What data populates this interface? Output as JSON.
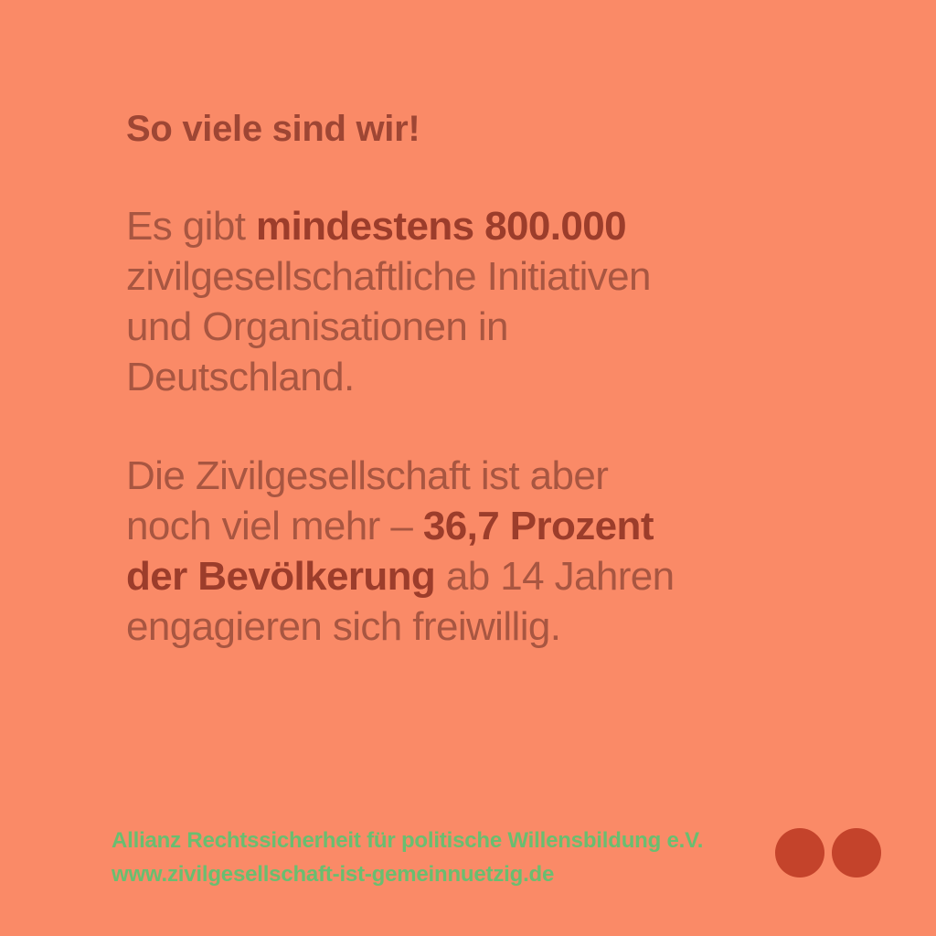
{
  "card": {
    "headline": "So viele sind wir!",
    "paragraphs": [
      {
        "lines": [
          {
            "segments": [
              {
                "text": "Es gibt ",
                "bold": false
              },
              {
                "text": "mindestens 800.000",
                "bold": true
              }
            ]
          },
          {
            "segments": [
              {
                "text": "zivilgesellschaftliche Initiativen",
                "bold": false
              }
            ]
          },
          {
            "segments": [
              {
                "text": "und Organisationen in",
                "bold": false
              }
            ]
          },
          {
            "segments": [
              {
                "text": "Deutschland.",
                "bold": false
              }
            ]
          }
        ]
      },
      {
        "lines": [
          {
            "segments": [
              {
                "text": "Die Zivilgesellschaft ist aber",
                "bold": false
              }
            ]
          },
          {
            "segments": [
              {
                "text": "noch viel mehr – ",
                "bold": false
              },
              {
                "text": "36,7 Prozent",
                "bold": true
              }
            ]
          },
          {
            "segments": [
              {
                "text": "der Bevölkerung",
                "bold": true
              },
              {
                "text": " ab 14 Jahren",
                "bold": false
              }
            ]
          },
          {
            "segments": [
              {
                "text": "engagieren sich freiwillig.",
                "bold": false
              }
            ]
          }
        ]
      }
    ],
    "footer": {
      "organization": "Allianz Rechtssicherheit für politische Willensbildung e.V.",
      "website": "www.zivilgesellschaft-ist-gemeinnuetzig.de"
    },
    "decor": {
      "dot_count": 2
    },
    "colors": {
      "background": "#FA8A67",
      "headline": "#9E4634",
      "body_regular": "#A85641",
      "body_bold": "#9C3D2B",
      "footer_green": "#69BE70",
      "dot": "#C4432B"
    }
  }
}
